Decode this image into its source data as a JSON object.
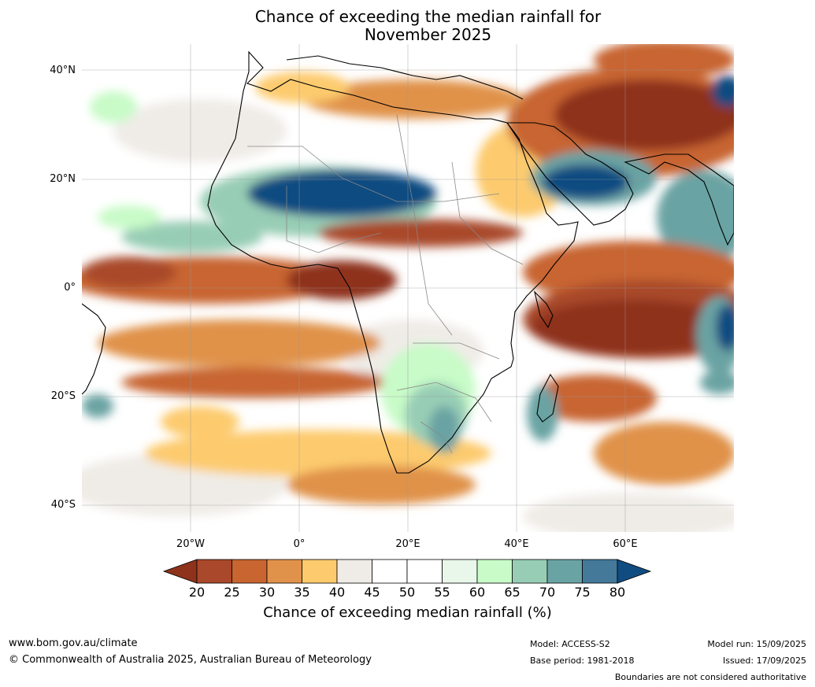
{
  "title_line1": "Chance of exceeding the median rainfall for",
  "title_line2": "November 2025",
  "lat_labels": [
    "40°N",
    "20°N",
    "0°",
    "20°S",
    "40°S"
  ],
  "lon_labels": [
    "20°W",
    "0°",
    "20°E",
    "40°E",
    "60°E"
  ],
  "colorbar": {
    "ticks": [
      "20",
      "25",
      "30",
      "35",
      "40",
      "45",
      "50",
      "55",
      "60",
      "65",
      "70",
      "75",
      "80"
    ],
    "colors": [
      "#8e321c",
      "#a9482a",
      "#c86530",
      "#e0924a",
      "#fdcb6e",
      "#efece7",
      "#ffffff",
      "#ffffff",
      "#e9f6ea",
      "#c8fbc8",
      "#98cdb5",
      "#6aa3a3",
      "#44799a",
      "#114c81"
    ],
    "label": "Chance of exceeding median rainfall (%)"
  },
  "footer": {
    "website": "www.bom.gov.au/climate",
    "copyright": "© Commonwealth of Australia 2025, Australian Bureau of Meteorology",
    "model": "Model: ACCESS-S2",
    "base_period": "Base period: 1981-2018",
    "model_run": "Model run: 15/09/2025",
    "issued": "Issued: 17/09/2025",
    "disclaimer": "Boundaries are not considered authoritative"
  }
}
